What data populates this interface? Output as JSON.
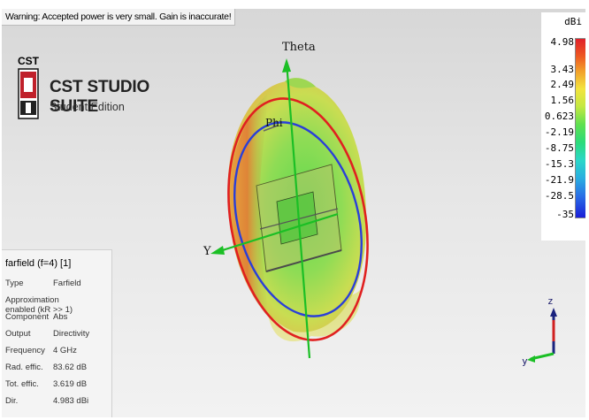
{
  "warning": "Warning: Accepted power is very small. Gain is inaccurate!",
  "logo": {
    "mark_text": "CST",
    "brand": "CST STUDIO SUITE",
    "edition": "Student Edition"
  },
  "axes": {
    "theta": "Theta",
    "phi": "Phi",
    "y": "Y"
  },
  "info": {
    "title": "farfield (f=4) [1]",
    "rows": [
      {
        "key": "Type",
        "value": "Farfield"
      },
      {
        "key": "Approximation",
        "value": "enabled (kR >> 1)"
      },
      {
        "key": "Component",
        "value": "Abs"
      },
      {
        "key": "Output",
        "value": "Directivity"
      },
      {
        "key": "Frequency",
        "value": "4 GHz"
      },
      {
        "key": "Rad. effic.",
        "value": "83.62 dB"
      },
      {
        "key": "Tot. effic.",
        "value": "3.619 dB"
      },
      {
        "key": "Dir.",
        "value": "4.983 dBi"
      }
    ]
  },
  "legend": {
    "unit": "dBi",
    "ticks": [
      "4.98",
      "3.43",
      "2.49",
      "1.56",
      "0.623",
      "-2.19",
      "-8.75",
      "-15.3",
      "-21.9",
      "-28.5",
      "-35"
    ]
  },
  "triad": {
    "z": "z",
    "y": "y"
  },
  "colors": {
    "theta_ring": "#e02020",
    "phi_ring": "#2a3fd8",
    "axis": "#1bbf25",
    "pattern_green": "#7fd65a",
    "pattern_orange": "#e28a3a"
  }
}
